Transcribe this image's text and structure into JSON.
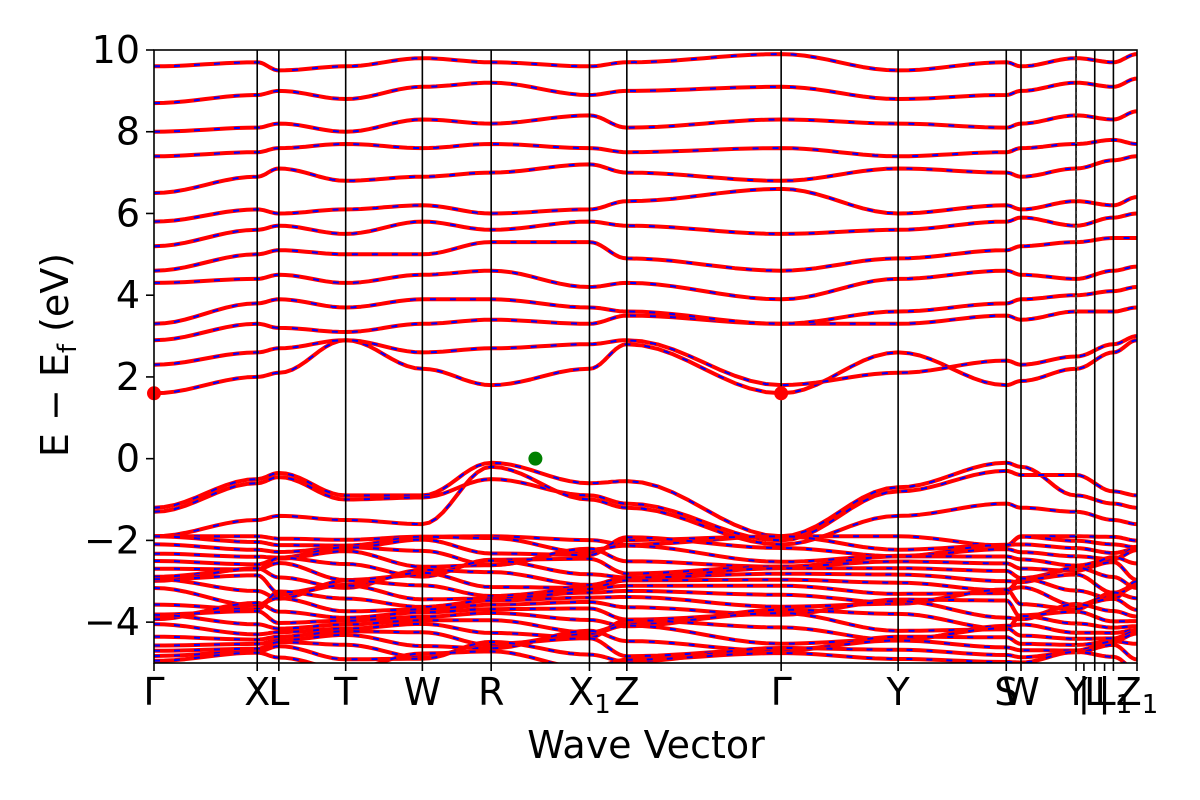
{
  "chart_data": {
    "type": "line",
    "title": "",
    "xlabel": "Wave Vector",
    "ylabel": "E − E_f (eV)",
    "ylabel_parts": {
      "main": "E − E",
      "sub": "f",
      "unit": " (eV)"
    },
    "ylim": [
      -5,
      10
    ],
    "yticks": [
      -4,
      -2,
      0,
      2,
      4,
      6,
      8,
      10
    ],
    "ytick_labels": [
      "−4",
      "−2",
      "0",
      "2",
      "4",
      "6",
      "8",
      "10"
    ],
    "xlim": [
      0,
      1
    ],
    "kpoints": [
      {
        "label": "Γ",
        "sub": "",
        "x": 0.0
      },
      {
        "label": "X",
        "sub": "",
        "x": 0.105
      },
      {
        "label": "L",
        "sub": "",
        "x": 0.127
      },
      {
        "label": "T",
        "sub": "",
        "x": 0.195
      },
      {
        "label": "W",
        "sub": "",
        "x": 0.273
      },
      {
        "label": "R",
        "sub": "",
        "x": 0.343
      },
      {
        "label": "X",
        "sub": "1",
        "x": 0.443
      },
      {
        "label": "Z",
        "sub": "",
        "x": 0.481
      },
      {
        "label": "Γ",
        "sub": "",
        "x": 0.638
      },
      {
        "label": "Y",
        "sub": "",
        "x": 0.757
      },
      {
        "label": "S",
        "sub": "",
        "x": 0.867
      },
      {
        "label": "W",
        "sub": "",
        "x": 0.882
      },
      {
        "label": "Y",
        "sub": "",
        "x": 0.938
      },
      {
        "label": "|",
        "sub": "",
        "x": 0.946
      },
      {
        "label": "L",
        "sub": "",
        "x": 0.957
      },
      {
        "label": "|",
        "sub": "",
        "x": 0.967
      },
      {
        "label": "L",
        "sub": "1",
        "x": 0.976
      },
      {
        "label": "Z",
        "sub": "1",
        "x": 1.0
      }
    ],
    "dashed_line_x": 0.938,
    "markers": [
      {
        "name": "vbm",
        "x": 0.388,
        "y": 0.0,
        "color": "#008000"
      },
      {
        "name": "cbm-left",
        "x": 0.0,
        "y": 1.6,
        "color": "#ff0000"
      },
      {
        "name": "cbm-gamma",
        "x": 0.638,
        "y": 1.6,
        "color": "#ff0000"
      }
    ],
    "series": [
      {
        "color": "#ff0000",
        "style": "solid"
      },
      {
        "color": "#0000ff",
        "style": "dashed"
      }
    ],
    "band_anchors": {
      "x": [
        0.0,
        0.105,
        0.127,
        0.195,
        0.273,
        0.343,
        0.443,
        0.481,
        0.638,
        0.757,
        0.867,
        0.882,
        0.938,
        0.976,
        1.0
      ],
      "valence": [
        [
          -1.2,
          -0.5,
          -0.35,
          -0.9,
          -0.9,
          -0.1,
          -0.6,
          -0.55,
          -1.9,
          -0.7,
          -0.1,
          -0.2,
          -0.9,
          -1.1,
          -1.2
        ],
        [
          -1.3,
          -0.6,
          -0.45,
          -1.0,
          -0.95,
          -0.5,
          -0.9,
          -1.1,
          -2.0,
          -0.8,
          -0.3,
          -0.4,
          -0.4,
          -0.8,
          -0.9
        ],
        [
          -1.9,
          -1.5,
          -1.4,
          -1.5,
          -1.6,
          -0.2,
          -1.0,
          -1.2,
          -2.1,
          -1.4,
          -1.1,
          -1.2,
          -1.3,
          -1.5,
          -1.6
        ]
      ],
      "conduction": [
        [
          1.6,
          2.0,
          2.1,
          2.9,
          2.2,
          1.8,
          2.2,
          2.8,
          1.6,
          2.6,
          1.8,
          1.9,
          2.2,
          2.6,
          2.9
        ],
        [
          2.3,
          2.6,
          2.7,
          2.9,
          2.6,
          2.7,
          2.8,
          2.9,
          1.8,
          2.1,
          2.4,
          2.3,
          2.5,
          2.8,
          3.0
        ],
        [
          2.9,
          3.3,
          3.2,
          3.1,
          3.3,
          3.4,
          3.3,
          3.5,
          3.3,
          3.3,
          3.5,
          3.4,
          3.6,
          3.6,
          3.7
        ],
        [
          3.3,
          3.8,
          3.9,
          3.7,
          3.9,
          3.9,
          3.7,
          3.6,
          3.3,
          3.6,
          3.8,
          3.9,
          4.0,
          4.1,
          4.2
        ],
        [
          4.3,
          4.4,
          4.5,
          4.3,
          4.5,
          4.6,
          4.2,
          4.3,
          3.9,
          4.4,
          4.6,
          4.5,
          4.4,
          4.6,
          4.7
        ],
        [
          4.6,
          5.0,
          5.1,
          5.0,
          5.0,
          5.3,
          5.3,
          4.9,
          4.6,
          4.9,
          5.1,
          5.2,
          5.3,
          5.4,
          5.4
        ],
        [
          5.2,
          5.6,
          5.7,
          5.5,
          5.8,
          5.6,
          5.8,
          5.7,
          5.5,
          5.6,
          5.8,
          5.9,
          5.7,
          5.9,
          6.0
        ],
        [
          5.8,
          6.1,
          6.0,
          6.1,
          6.2,
          6.0,
          6.1,
          6.3,
          6.6,
          6.0,
          6.2,
          6.1,
          6.3,
          6.2,
          6.4
        ],
        [
          6.5,
          6.9,
          7.1,
          6.8,
          6.9,
          7.0,
          7.2,
          7.0,
          6.8,
          7.1,
          7.0,
          6.9,
          7.1,
          7.3,
          7.4
        ],
        [
          7.4,
          7.5,
          7.6,
          7.7,
          7.6,
          7.7,
          7.6,
          7.5,
          7.6,
          7.4,
          7.5,
          7.6,
          7.7,
          7.8,
          7.7
        ],
        [
          8.0,
          8.1,
          8.2,
          8.0,
          8.3,
          8.2,
          8.4,
          8.1,
          8.3,
          8.2,
          8.1,
          8.2,
          8.4,
          8.3,
          8.5
        ],
        [
          8.7,
          8.9,
          9.0,
          8.8,
          9.1,
          9.2,
          8.9,
          9.0,
          9.1,
          8.8,
          8.9,
          9.0,
          9.2,
          9.1,
          9.3
        ],
        [
          9.6,
          9.7,
          9.5,
          9.6,
          9.8,
          9.7,
          9.6,
          9.7,
          9.9,
          9.5,
          9.7,
          9.6,
          9.8,
          9.7,
          9.9
        ]
      ],
      "deep_band_range": [
        -4.9,
        -1.9
      ],
      "deep_band_count": 22
    }
  }
}
